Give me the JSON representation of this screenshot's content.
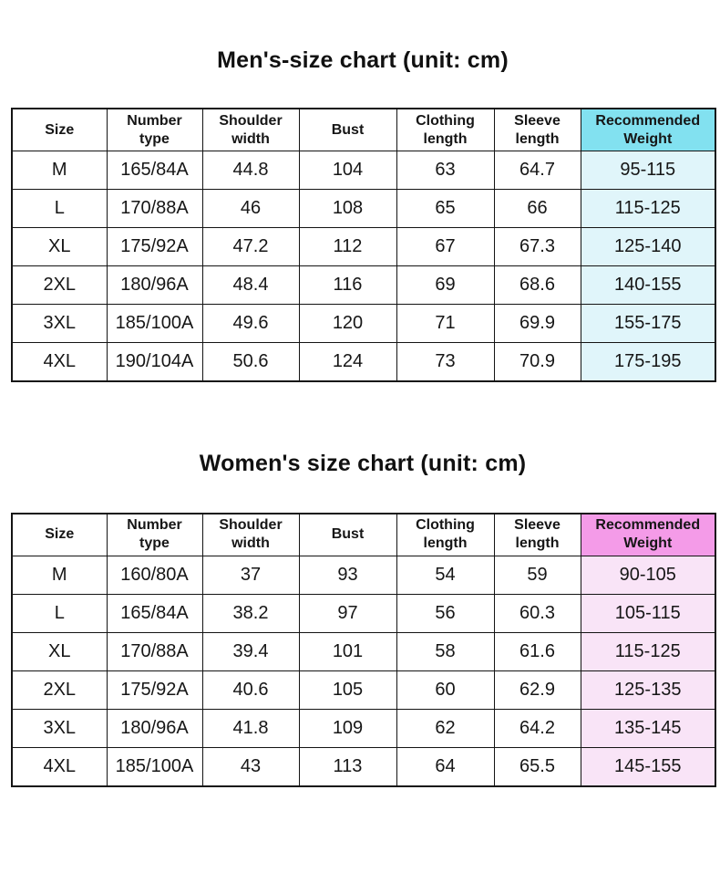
{
  "accents": {
    "men_header_bg": "#82e1f0",
    "men_cell_bg": "#e0f5fa",
    "women_header_bg": "#f49be8",
    "women_cell_bg": "#f9e4f7",
    "border_color": "#141414",
    "text_color": "#161616"
  },
  "chart_data": [
    {
      "type": "table",
      "title": "Men's-size chart (unit: cm)",
      "unit": "cm",
      "accent_column": "Recommended Weight",
      "columns": [
        "Size",
        "Number\ntype",
        "Shoulder\nwidth",
        "Bust",
        "Clothing\nlength",
        "Sleeve\nlength",
        "Recommended\nWeight"
      ],
      "rows": [
        [
          "M",
          "165/84A",
          "44.8",
          "104",
          "63",
          "64.7",
          "95-115"
        ],
        [
          "L",
          "170/88A",
          "46",
          "108",
          "65",
          "66",
          "115-125"
        ],
        [
          "XL",
          "175/92A",
          "47.2",
          "112",
          "67",
          "67.3",
          "125-140"
        ],
        [
          "2XL",
          "180/96A",
          "48.4",
          "116",
          "69",
          "68.6",
          "140-155"
        ],
        [
          "3XL",
          "185/100A",
          "49.6",
          "120",
          "71",
          "69.9",
          "155-175"
        ],
        [
          "4XL",
          "190/104A",
          "50.6",
          "124",
          "73",
          "70.9",
          "175-195"
        ]
      ]
    },
    {
      "type": "table",
      "title": "Women's size chart (unit: cm)",
      "unit": "cm",
      "accent_column": "Recommended Weight",
      "columns": [
        "Size",
        "Number\ntype",
        "Shoulder\nwidth",
        "Bust",
        "Clothing\nlength",
        "Sleeve\nlength",
        "Recommended\nWeight"
      ],
      "rows": [
        [
          "M",
          "160/80A",
          "37",
          "93",
          "54",
          "59",
          "90-105"
        ],
        [
          "L",
          "165/84A",
          "38.2",
          "97",
          "56",
          "60.3",
          "105-115"
        ],
        [
          "XL",
          "170/88A",
          "39.4",
          "101",
          "58",
          "61.6",
          "115-125"
        ],
        [
          "2XL",
          "175/92A",
          "40.6",
          "105",
          "60",
          "62.9",
          "125-135"
        ],
        [
          "3XL",
          "180/96A",
          "41.8",
          "109",
          "62",
          "64.2",
          "135-145"
        ],
        [
          "4XL",
          "185/100A",
          "43",
          "113",
          "64",
          "65.5",
          "145-155"
        ]
      ]
    }
  ]
}
